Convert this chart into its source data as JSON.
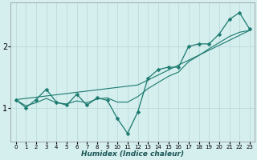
{
  "xlabel": "Humidex (Indice chaleur)",
  "background_color": "#d5eeee",
  "grid_color": "#b8d8d8",
  "line_color": "#1a7a6e",
  "xlim": [
    -0.5,
    23.5
  ],
  "ylim": [
    0.45,
    2.72
  ],
  "yticks": [
    1,
    2
  ],
  "xticks": [
    0,
    1,
    2,
    3,
    4,
    5,
    6,
    7,
    8,
    9,
    10,
    11,
    12,
    13,
    14,
    15,
    16,
    17,
    18,
    19,
    20,
    21,
    22,
    23
  ],
  "line1_x": [
    0,
    1,
    2,
    3,
    4,
    5,
    6,
    7,
    8,
    9,
    10,
    11,
    12,
    13,
    14,
    15,
    16,
    17,
    18,
    19,
    20,
    21,
    22,
    23
  ],
  "line1_y": [
    1.13,
    1.0,
    1.13,
    1.3,
    1.09,
    1.04,
    1.22,
    1.04,
    1.16,
    1.12,
    0.82,
    0.58,
    0.93,
    1.48,
    1.62,
    1.66,
    1.66,
    2.0,
    2.04,
    2.04,
    2.2,
    2.44,
    2.55,
    2.28
  ],
  "line2_x": [
    0,
    1,
    2,
    3,
    4,
    5,
    6,
    7,
    8,
    9,
    10,
    11,
    12,
    13,
    14,
    15,
    16,
    17,
    18,
    19,
    20,
    21,
    22,
    23
  ],
  "line2_y": [
    1.13,
    1.03,
    1.08,
    1.15,
    1.08,
    1.06,
    1.11,
    1.08,
    1.14,
    1.16,
    1.09,
    1.09,
    1.18,
    1.31,
    1.41,
    1.51,
    1.58,
    1.75,
    1.85,
    1.96,
    2.06,
    2.16,
    2.23,
    2.26
  ],
  "line3_x": [
    0,
    12,
    23
  ],
  "line3_y": [
    1.13,
    1.37,
    2.26
  ],
  "marker_size": 2.5,
  "linewidth": 0.9,
  "smooth_linewidth": 0.8,
  "label_fontsize": 6.5,
  "tick_fontsize": 5
}
